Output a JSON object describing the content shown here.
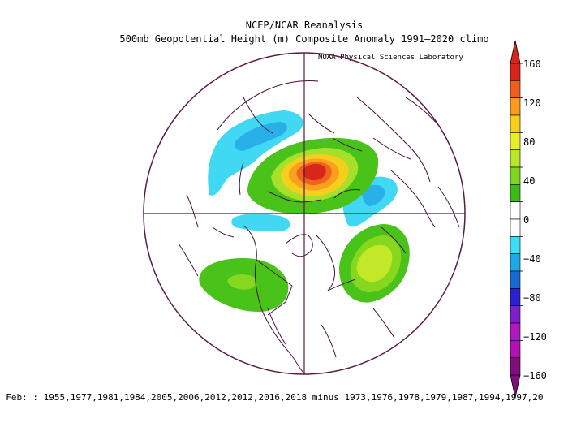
{
  "title_line1": "NCEP/NCAR Reanalysis",
  "title_line2": "500mb Geopotential Height (m) Composite Anomaly 1991–2020 climo",
  "credit": "NOAA Physical Sciences Laboratory",
  "caption": "o Feb: : 1955,1977,1981,1984,2005,2006,2012,2012,2016,2018 minus 1973,1976,1978,1979,1987,1994,1997,20",
  "map": {
    "projection": "north-polar-stereographic",
    "grid_line_color": "#5a1a48",
    "coastline_color": "#4a0f3a"
  },
  "colorbar": {
    "levels": [
      "160",
      "120",
      "80",
      "40",
      "0",
      "−40",
      "−80",
      "−120",
      "−160"
    ],
    "colors": [
      "#d7251a",
      "#ee5f1d",
      "#f99c1e",
      "#f6cf1a",
      "#e6ef2a",
      "#b8e62a",
      "#7fd51f",
      "#3dbb1b",
      "#ffffff",
      "#ffffff",
      "#3fdcf5",
      "#20a8e6",
      "#1a6bd1",
      "#2b22cf",
      "#7d1fd0",
      "#b118bd",
      "#b50fb4",
      "#7f0d7c"
    ]
  },
  "anomalies": [
    {
      "name": "positive-anomaly-arctic",
      "sign": "positive",
      "peak": 160
    },
    {
      "name": "positive-anomaly-atlantic",
      "sign": "positive",
      "peak": 60
    },
    {
      "name": "positive-anomaly-pacific",
      "sign": "positive",
      "peak": 40
    },
    {
      "name": "negative-anomaly-siberia",
      "sign": "negative",
      "peak": -40
    },
    {
      "name": "negative-anomaly-europe",
      "sign": "negative",
      "peak": -40
    },
    {
      "name": "negative-anomaly-canada",
      "sign": "negative",
      "peak": -40
    }
  ]
}
